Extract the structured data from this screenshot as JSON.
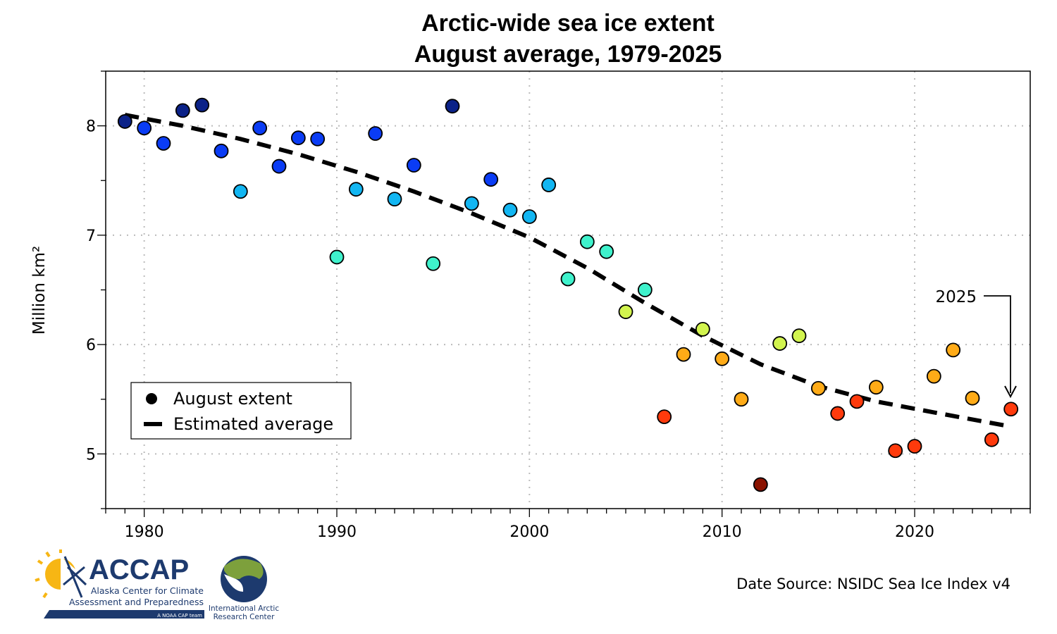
{
  "chart_data": {
    "type": "scatter",
    "title": [
      "Arctic-wide sea ice extent",
      "August average, 1979-2025"
    ],
    "xlabel": "",
    "ylabel": "Million km²",
    "xlim": [
      1978,
      2026
    ],
    "ylim": [
      4.5,
      8.5
    ],
    "xticks": [
      1980,
      1990,
      2000,
      2010,
      2020
    ],
    "yticks": [
      5,
      6,
      7,
      8
    ],
    "grid": true,
    "legend": {
      "placement": "lower-left",
      "entries": [
        "August extent",
        "Estimated average"
      ]
    },
    "series": [
      {
        "name": "August extent",
        "type": "scatter",
        "x": [
          1979,
          1980,
          1981,
          1982,
          1983,
          1984,
          1985,
          1986,
          1987,
          1988,
          1989,
          1990,
          1991,
          1992,
          1993,
          1994,
          1995,
          1996,
          1997,
          1998,
          1999,
          2000,
          2001,
          2002,
          2003,
          2004,
          2005,
          2006,
          2007,
          2008,
          2009,
          2010,
          2011,
          2012,
          2013,
          2014,
          2015,
          2016,
          2017,
          2018,
          2019,
          2020,
          2021,
          2022,
          2023,
          2024,
          2025
        ],
        "y": [
          8.04,
          7.98,
          7.84,
          8.14,
          8.19,
          7.77,
          7.4,
          7.98,
          7.63,
          7.89,
          7.88,
          6.8,
          7.42,
          7.93,
          7.33,
          7.64,
          6.74,
          8.18,
          7.29,
          7.51,
          7.23,
          7.17,
          7.46,
          6.6,
          6.94,
          6.85,
          6.3,
          6.5,
          5.34,
          5.91,
          6.14,
          5.87,
          5.5,
          4.72,
          6.01,
          6.08,
          5.6,
          5.37,
          5.48,
          5.61,
          5.03,
          5.07,
          5.71,
          5.95,
          5.51,
          5.13,
          5.41
        ]
      },
      {
        "name": "Estimated average",
        "type": "line",
        "style": "dashed",
        "x": [
          1979,
          1982,
          1985,
          1988,
          1991,
          1994,
          1997,
          2000,
          2003,
          2006,
          2009,
          2012,
          2015,
          2018,
          2021,
          2025
        ],
        "y": [
          8.1,
          8.0,
          7.88,
          7.74,
          7.58,
          7.4,
          7.2,
          6.98,
          6.7,
          6.38,
          6.08,
          5.82,
          5.62,
          5.48,
          5.38,
          5.25
        ]
      }
    ],
    "color_bins": [
      {
        "min": 8.0,
        "color": "#0b2288"
      },
      {
        "min": 7.5,
        "color": "#0a3cf5"
      },
      {
        "min": 7.0,
        "color": "#12b6f2"
      },
      {
        "min": 6.5,
        "color": "#3ff2cc"
      },
      {
        "min": 6.0,
        "color": "#d2f44e"
      },
      {
        "min": 5.495,
        "color": "#ffab17"
      },
      {
        "min": 5.0,
        "color": "#ff3a0c"
      },
      {
        "min": 0,
        "color": "#8a1200"
      }
    ],
    "annotation": {
      "text": "2025",
      "target_x": 2025,
      "target_y": 5.41
    }
  },
  "source": "Date Source: NSIDC Sea Ice Index v4",
  "logos": {
    "accap": {
      "name": "ACCAP",
      "line1": "Alaska Center for Climate",
      "line2": "Assessment and Preparedness",
      "tag": "A NOAA CAP team"
    },
    "iarc": {
      "line1": "International Arctic",
      "line2": "Research Center"
    }
  }
}
